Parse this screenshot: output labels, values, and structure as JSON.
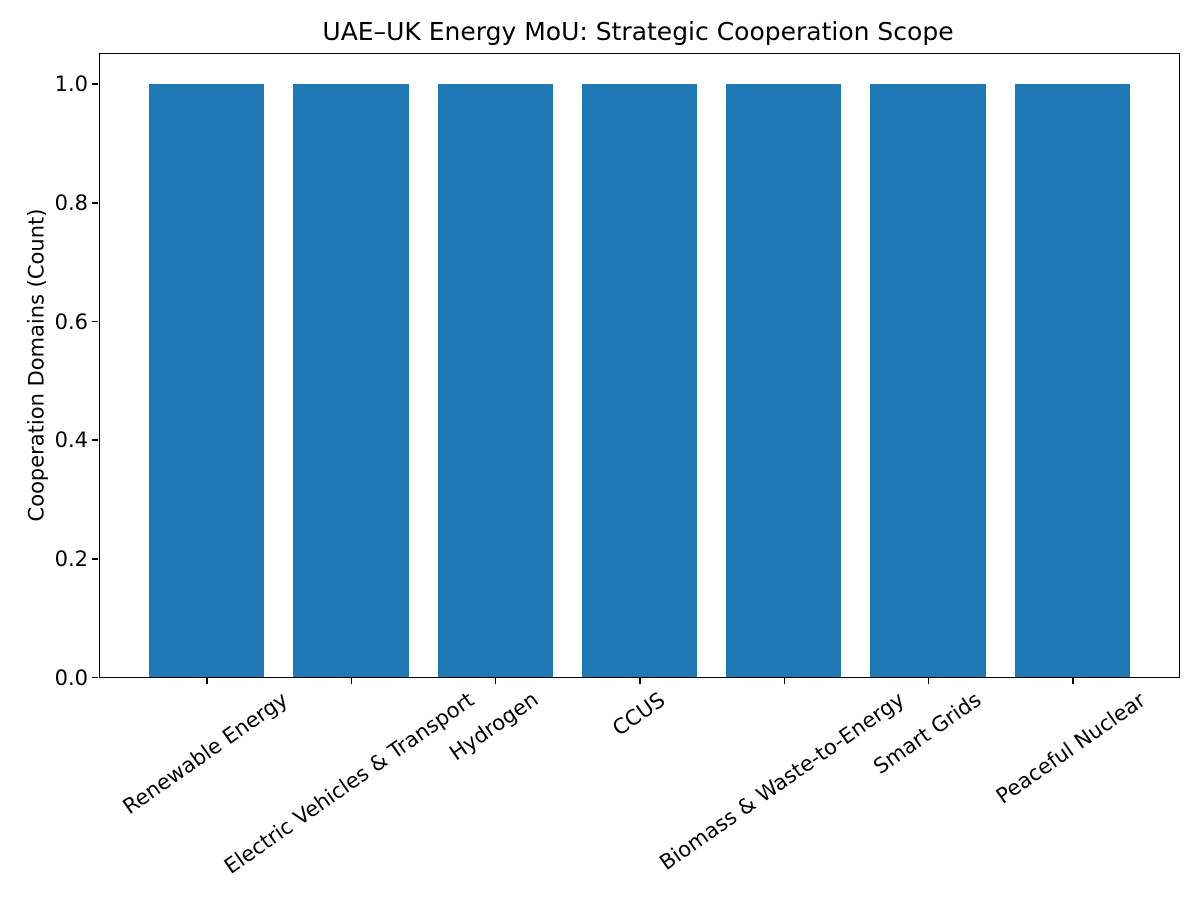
{
  "chart_data": {
    "type": "bar",
    "title": "UAE–UK Energy MoU: Strategic Cooperation Scope",
    "xlabel": "",
    "ylabel": "Cooperation Domains (Count)",
    "categories": [
      "Renewable Energy",
      "Electric Vehicles & Transport",
      "Hydrogen",
      "CCUS",
      "Biomass & Waste-to-Energy",
      "Smart Grids",
      "Peaceful Nuclear"
    ],
    "values": [
      1,
      1,
      1,
      1,
      1,
      1,
      1
    ],
    "ylim": [
      0,
      1.05
    ],
    "yticks": [
      0.0,
      0.2,
      0.4,
      0.6,
      0.8,
      1.0
    ],
    "ytick_labels": [
      "0.0",
      "0.2",
      "0.4",
      "0.6",
      "0.8",
      "1.0"
    ],
    "bar_color": "#1f77b4",
    "axis_color": "#000000",
    "background_color": "#ffffff",
    "bar_width_fraction": 0.8,
    "x_label_rotation_deg": 35,
    "grid": false,
    "legend": null
  }
}
